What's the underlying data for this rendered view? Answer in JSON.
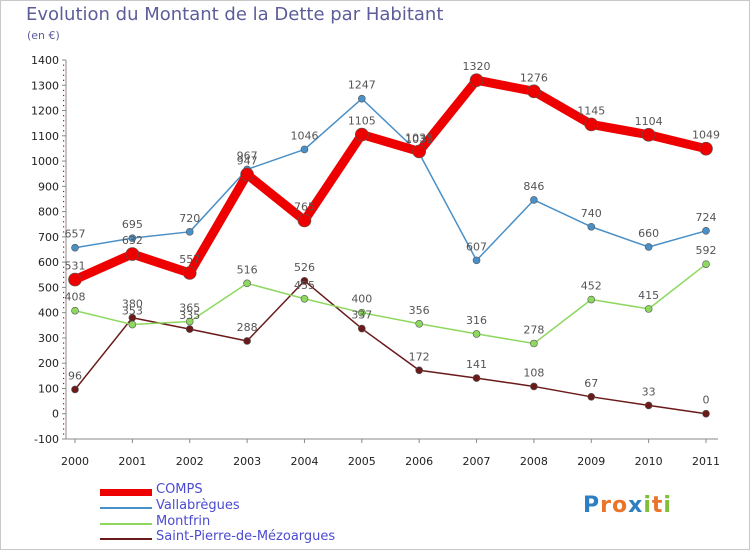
{
  "title": "Evolution du Montant de la Dette par Habitant",
  "subtitle": "(en €)",
  "logo": {
    "text": "Proxiti",
    "letters": [
      "P",
      "r",
      "o",
      "x",
      "i",
      "t",
      "i"
    ],
    "colors": [
      "#2d7fc1",
      "#e9742a",
      "#e9742a",
      "#2d7fc1",
      "#7fbf3a",
      "#e9742a",
      "#7fbf3a"
    ]
  },
  "chart_data": {
    "type": "line",
    "title": "Evolution du Montant de la Dette par Habitant",
    "ylabel": "(en €)",
    "xlabel": "",
    "x": [
      "2000",
      "2001",
      "2002",
      "2003",
      "2004",
      "2005",
      "2006",
      "2007",
      "2008",
      "2009",
      "2010",
      "2011"
    ],
    "ylim": [
      -100,
      1400
    ],
    "yticks": [
      -100,
      0,
      100,
      200,
      300,
      400,
      500,
      600,
      700,
      800,
      900,
      1000,
      1100,
      1200,
      1300,
      1400
    ],
    "grid": false,
    "legend": "bottom-left",
    "series": [
      {
        "name": "COMPS",
        "color": "#ee0000",
        "values": [
          531,
          632,
          557,
          947,
          765,
          1105,
          1038,
          1320,
          1276,
          1145,
          1104,
          1049
        ]
      },
      {
        "name": "Vallabrègues",
        "color": "#4a90c8",
        "values": [
          657,
          695,
          720,
          967,
          1046,
          1247,
          1031,
          607,
          846,
          740,
          660,
          724
        ]
      },
      {
        "name": "Montfrin",
        "color": "#8ed860",
        "values": [
          408,
          353,
          365,
          516,
          455,
          400,
          356,
          316,
          278,
          452,
          415,
          592
        ]
      },
      {
        "name": "Saint-Pierre-de-Mézoargues",
        "color": "#6b1a1a",
        "values": [
          96,
          380,
          335,
          288,
          526,
          337,
          172,
          141,
          108,
          67,
          33,
          0
        ]
      }
    ]
  }
}
